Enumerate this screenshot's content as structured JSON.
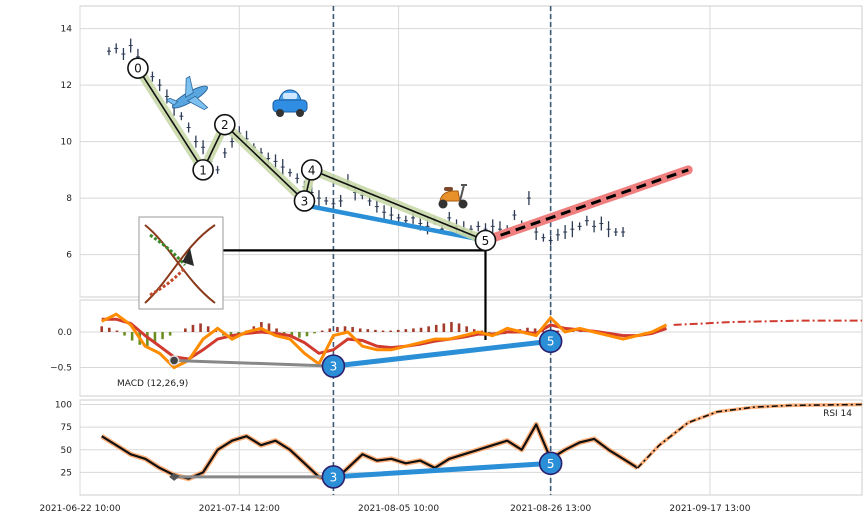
{
  "chart_data": {
    "type": "line",
    "x_labels": [
      "2021-06-22 10:00",
      "2021-07-14 12:00",
      "2021-08-05 10:00",
      "2021-08-26 13:00",
      "2021-09-17 13:00"
    ],
    "x_label_pos": [
      0,
      22,
      44,
      65,
      87
    ],
    "x_range": [
      0,
      108
    ],
    "vlines_x": [
      35,
      65
    ],
    "panels": {
      "price": {
        "ylim": [
          4.5,
          14.8
        ],
        "yticks": [
          6,
          8,
          10,
          12,
          14
        ],
        "series": [
          {
            "x": [
              4,
              5,
              6,
              7,
              8,
              9,
              10,
              11,
              12,
              13,
              14,
              15,
              16,
              17,
              18,
              19,
              20,
              21,
              22,
              23,
              24,
              25,
              26,
              27,
              28,
              29,
              30,
              31,
              32,
              33,
              34,
              35,
              36,
              37,
              38,
              39,
              40,
              41,
              42,
              43,
              44,
              45,
              46,
              47,
              48,
              49,
              50,
              51,
              52,
              53,
              54,
              55,
              56,
              57,
              58,
              59,
              60,
              61,
              62,
              63,
              64,
              65,
              66,
              67,
              68,
              69,
              70,
              71,
              72,
              73,
              74,
              75
            ],
            "y": [
              13.2,
              13.3,
              13.1,
              13.4,
              13.0,
              12.7,
              12.3,
              12.0,
              11.6,
              11.2,
              10.9,
              10.5,
              10.0,
              9.8,
              9.3,
              9.0,
              9.6,
              10.0,
              10.3,
              10.1,
              9.8,
              9.6,
              9.4,
              9.3,
              9.1,
              8.9,
              8.7,
              8.4,
              8.2,
              8.0,
              7.9,
              7.8,
              7.9,
              8.6,
              8.2,
              8.1,
              7.9,
              7.7,
              7.5,
              7.4,
              7.3,
              7.2,
              7.3,
              7.1,
              7.0,
              7.2,
              6.9,
              7.3,
              7.0,
              6.9,
              6.9,
              7.0,
              6.9,
              7.0,
              6.9,
              6.9,
              7.4,
              7.0,
              8.0,
              6.8,
              6.6,
              6.5,
              6.7,
              6.8,
              6.9,
              7.0,
              7.2,
              7.0,
              7.1,
              6.9,
              6.8,
              6.8
            ]
          }
        ],
        "wave": [
          {
            "label": "0",
            "x": 8,
            "y": 12.6
          },
          {
            "label": "1",
            "x": 17,
            "y": 9.0
          },
          {
            "label": "2",
            "x": 20,
            "y": 10.6
          },
          {
            "label": "3",
            "x": 31,
            "y": 7.9
          },
          {
            "label": "4",
            "x": 32,
            "y": 9.0
          },
          {
            "label": "5",
            "x": 56,
            "y": 6.5
          }
        ],
        "support_line": {
          "x1": 13,
          "y1": 6.15,
          "x2": 56,
          "y2": 6.15
        },
        "trend_blue": {
          "x1": 31,
          "y1": 7.75,
          "x2": 56,
          "y2": 6.5
        },
        "forecast": {
          "x1": 56,
          "y1": 6.5,
          "x2": 84,
          "y2": 9.0
        }
      },
      "macd": {
        "label": "MACD (12,26,9)",
        "ylim": [
          -0.9,
          0.45
        ],
        "yticks": [
          -0.5,
          0.0
        ],
        "ytick_labels": [
          "−0.5",
          "0.0"
        ],
        "histogram": [
          0.08,
          0.06,
          0.02,
          -0.05,
          -0.12,
          -0.18,
          -0.2,
          -0.15,
          -0.1,
          -0.05,
          0.0,
          0.05,
          0.1,
          0.12,
          0.08,
          0.02,
          -0.05,
          -0.1,
          -0.06,
          0.02,
          0.08,
          0.14,
          0.12,
          0.05,
          -0.02,
          -0.06,
          -0.08,
          -0.06,
          -0.02,
          0.02,
          0.05,
          0.07,
          0.08,
          0.07,
          0.05,
          0.04,
          0.03,
          0.02,
          0.02,
          0.03,
          0.04,
          0.05,
          0.06,
          0.08,
          0.1,
          0.12,
          0.14,
          0.12,
          0.08,
          0.04,
          0.02,
          -0.02,
          -0.05,
          -0.03,
          0.02,
          0.04,
          0.06,
          0.05,
          0.04,
          0.03,
          0.02,
          0.02,
          0.01,
          0.01
        ],
        "macd_x": [
          3,
          5,
          7,
          9,
          11,
          13,
          15,
          17,
          19,
          21,
          23,
          25,
          27,
          29,
          31,
          33,
          35,
          37,
          39,
          41,
          43,
          45,
          47,
          49,
          51,
          53,
          55,
          57,
          59,
          61,
          63,
          65,
          67,
          69,
          71,
          73,
          75,
          77,
          79,
          81
        ],
        "macd_line": [
          0.15,
          0.25,
          0.1,
          -0.2,
          -0.3,
          -0.5,
          -0.4,
          -0.1,
          0.05,
          -0.1,
          0.0,
          0.05,
          -0.05,
          -0.1,
          -0.3,
          -0.45,
          -0.05,
          0.0,
          -0.2,
          -0.25,
          -0.25,
          -0.2,
          -0.15,
          -0.1,
          -0.1,
          -0.05,
          0.0,
          -0.05,
          0.05,
          0.0,
          -0.05,
          0.2,
          0.0,
          0.05,
          0.0,
          -0.05,
          -0.1,
          -0.05,
          0.0,
          0.1
        ],
        "signal_line": [
          0.18,
          0.18,
          0.12,
          -0.05,
          -0.2,
          -0.35,
          -0.38,
          -0.25,
          -0.1,
          -0.05,
          -0.02,
          0.0,
          -0.02,
          -0.05,
          -0.15,
          -0.3,
          -0.25,
          -0.1,
          -0.12,
          -0.2,
          -0.22,
          -0.2,
          -0.17,
          -0.13,
          -0.1,
          -0.07,
          -0.03,
          -0.03,
          0.0,
          0.0,
          -0.02,
          0.1,
          0.05,
          0.03,
          0.01,
          -0.02,
          -0.05,
          -0.05,
          -0.02,
          0.05
        ],
        "forecast_x": [
          82,
          86,
          90,
          95,
          100,
          108
        ],
        "forecast_y": [
          0.1,
          0.12,
          0.14,
          0.15,
          0.16,
          0.16
        ],
        "gray_segment": {
          "x1": 13,
          "y1": -0.4,
          "x2": 35,
          "y2": -0.48
        },
        "trend_blue": {
          "x1": 35,
          "y1": -0.48,
          "x2": 65,
          "y2": -0.13
        },
        "points": [
          {
            "label": "3",
            "x": 35,
            "y": -0.48
          },
          {
            "label": "5",
            "x": 65,
            "y": -0.13
          }
        ]
      },
      "rsi": {
        "label": "RSI 14",
        "ylim": [
          0,
          105
        ],
        "yticks": [
          25,
          50,
          75,
          100
        ],
        "series_x": [
          3,
          5,
          7,
          9,
          11,
          13,
          15,
          17,
          19,
          21,
          23,
          25,
          27,
          29,
          31,
          33,
          35,
          37,
          39,
          41,
          43,
          45,
          47,
          49,
          51,
          53,
          55,
          57,
          59,
          61,
          63,
          65,
          67,
          69,
          71,
          73,
          75,
          77
        ],
        "series_y": [
          65,
          55,
          45,
          40,
          30,
          22,
          18,
          25,
          50,
          60,
          65,
          55,
          60,
          50,
          35,
          20,
          15,
          30,
          45,
          38,
          40,
          35,
          38,
          30,
          40,
          45,
          50,
          55,
          60,
          50,
          78,
          40,
          50,
          58,
          62,
          50,
          40,
          30
        ],
        "forecast_x": [
          77,
          80,
          84,
          88,
          93,
          98,
          108
        ],
        "forecast_y": [
          30,
          55,
          80,
          92,
          97,
          99,
          100
        ],
        "gray_segment": {
          "x1": 13,
          "y1": 20,
          "x2": 35,
          "y2": 20
        },
        "trend_blue": {
          "x1": 35,
          "y1": 20,
          "x2": 65,
          "y2": 35
        },
        "points": [
          {
            "label": "3",
            "x": 35,
            "y": 20
          },
          {
            "label": "5",
            "x": 65,
            "y": 35
          }
        ]
      }
    },
    "colors": {
      "price": "#2e3b55",
      "wave_line": "#111111",
      "wave_halo": "#c8d8a8",
      "blue_trend": "#2a8fd6",
      "forecast_halo": "#f08080",
      "macd_line": "#ff8c00",
      "signal_line": "#d03a2f",
      "hist_pos": "#a33a2a",
      "hist_neg": "#6b8e23",
      "rsi_line": "#111111",
      "rsi_halo": "#ffb07a",
      "vline": "#3c5a78",
      "grid": "#d8d8d8"
    },
    "icons": [
      "airplane-icon",
      "car-icon",
      "scooter-icon",
      "logo-inset"
    ]
  }
}
